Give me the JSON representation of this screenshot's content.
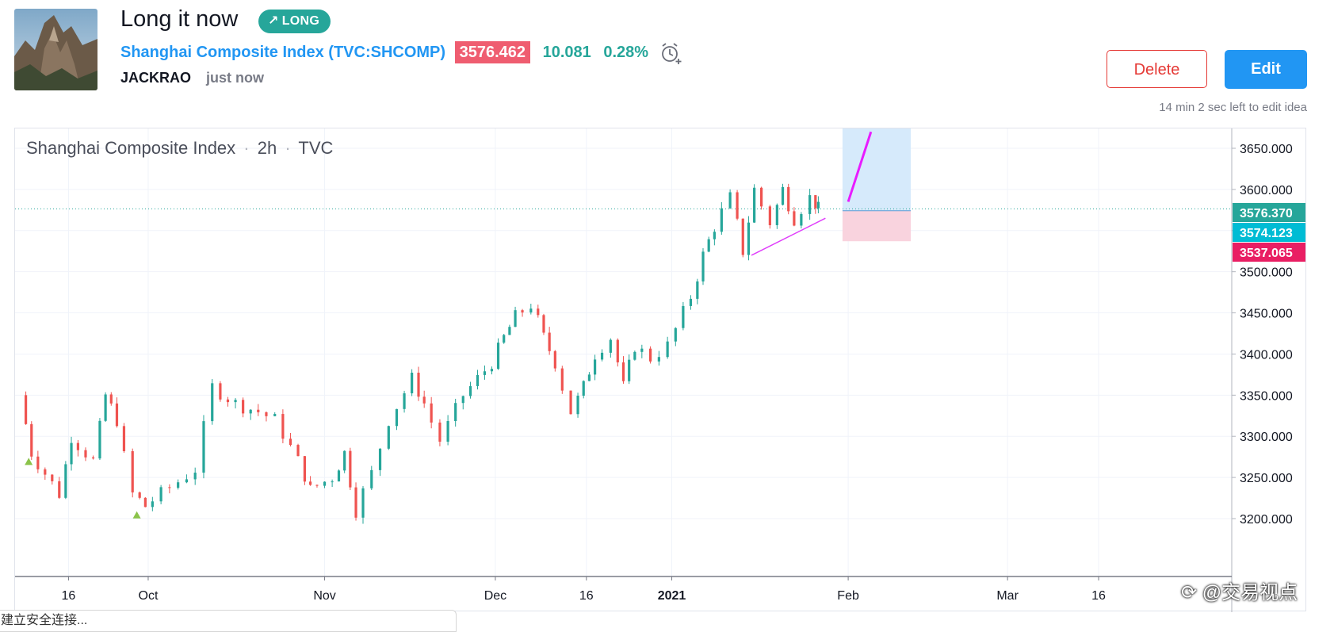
{
  "header": {
    "title": "Long it now",
    "badge": "LONG",
    "symbol_name": "Shanghai Composite Index",
    "symbol_open_paren": "(",
    "symbol_code": "TVC:SHCOMP",
    "symbol_close_paren": ")",
    "price": "3576.462",
    "change": "10.081",
    "change_pct": "0.28%",
    "author": "JACKRAO",
    "time": "just now"
  },
  "actions": {
    "delete_label": "Delete",
    "edit_label": "Edit",
    "edit_note": "14 min 2 sec left to edit idea"
  },
  "chart": {
    "legend_name": "Shanghai Composite Index",
    "legend_sep": "·",
    "legend_interval": "2h",
    "legend_exchange": "TVC"
  },
  "chart_data": {
    "type": "candlestick",
    "y_ticks": [
      "3650.000",
      "3600.000",
      "3550.000",
      "3500.000",
      "3450.000",
      "3400.000",
      "3350.000",
      "3300.000",
      "3250.000",
      "3200.000"
    ],
    "x_ticks": [
      "16",
      "Oct",
      "Nov",
      "Dec",
      "16",
      "2021",
      "Feb",
      "Mar",
      "16"
    ],
    "price_labels": [
      {
        "value": "3576.370",
        "color": "#26a69a"
      },
      {
        "value": "3574.123",
        "color": "#00bcd4"
      },
      {
        "value": "3537.065",
        "color": "#e91e63"
      }
    ],
    "last_price": 3576.37,
    "close_path": [
      [
        "Sep 8",
        3350
      ],
      [
        "Sep 10",
        3280
      ],
      [
        "Sep 15",
        3230
      ],
      [
        "Sep 17",
        3300
      ],
      [
        "Sep 21",
        3270
      ],
      [
        "Sep 23",
        3350
      ],
      [
        "Sep 25",
        3320
      ],
      [
        "Sep 28",
        3230
      ],
      [
        "Sep 30",
        3215
      ],
      [
        "Oct 9",
        3260
      ],
      [
        "Oct 12",
        3360
      ],
      [
        "Oct 16",
        3340
      ],
      [
        "Oct 20",
        3330
      ],
      [
        "Oct 23",
        3320
      ],
      [
        "Oct 27",
        3270
      ],
      [
        "Oct 29",
        3235
      ],
      [
        "Nov 2",
        3250
      ],
      [
        "Nov 4",
        3280
      ],
      [
        "Nov 6",
        3210
      ],
      [
        "Nov 9",
        3255
      ],
      [
        "Nov 12",
        3320
      ],
      [
        "Nov 16",
        3370
      ],
      [
        "Nov 18",
        3340
      ],
      [
        "Nov 21",
        3295
      ],
      [
        "Nov 25",
        3350
      ],
      [
        "Nov 30",
        3390
      ],
      [
        "Dec 2",
        3420
      ],
      [
        "Dec 4",
        3445
      ],
      [
        "Dec 7",
        3460
      ],
      [
        "Dec 9",
        3420
      ],
      [
        "Dec 11",
        3390
      ],
      [
        "Dec 14",
        3330
      ],
      [
        "Dec 16",
        3360
      ],
      [
        "Dec 18",
        3400
      ],
      [
        "Dec 21",
        3420
      ],
      [
        "Dec 23",
        3360
      ],
      [
        "Dec 25",
        3410
      ],
      [
        "Dec 28",
        3395
      ],
      [
        "Dec 31",
        3410
      ],
      [
        "Jan 4",
        3470
      ],
      [
        "Jan 6",
        3520
      ],
      [
        "Jan 8",
        3555
      ],
      [
        "Jan 11",
        3590
      ],
      [
        "Jan 13",
        3525
      ],
      [
        "Jan 15",
        3600
      ],
      [
        "Jan 18",
        3560
      ],
      [
        "Jan 20",
        3600
      ],
      [
        "Jan 22",
        3565
      ],
      [
        "Jan 25",
        3590
      ],
      [
        "Jan 26",
        3576
      ]
    ],
    "annotations": [
      {
        "type": "long-position",
        "target": 3660,
        "entry": 3574.123,
        "stop": 3537.065
      },
      {
        "type": "support-line",
        "from": [
          "Jan 14",
          3520
        ],
        "to": [
          "Jan 27",
          3565
        ]
      },
      {
        "type": "projection-line",
        "from": [
          "Jan 31",
          3585
        ],
        "to": [
          "Feb 4",
          3670
        ]
      },
      {
        "type": "buy-marker",
        "at": [
          "Sep 9",
          3270
        ]
      },
      {
        "type": "buy-marker",
        "at": [
          "Sep 28",
          3205
        ]
      }
    ]
  },
  "overlay": {
    "status_text": "建立安全连接...",
    "watermark": "@交易视点"
  }
}
